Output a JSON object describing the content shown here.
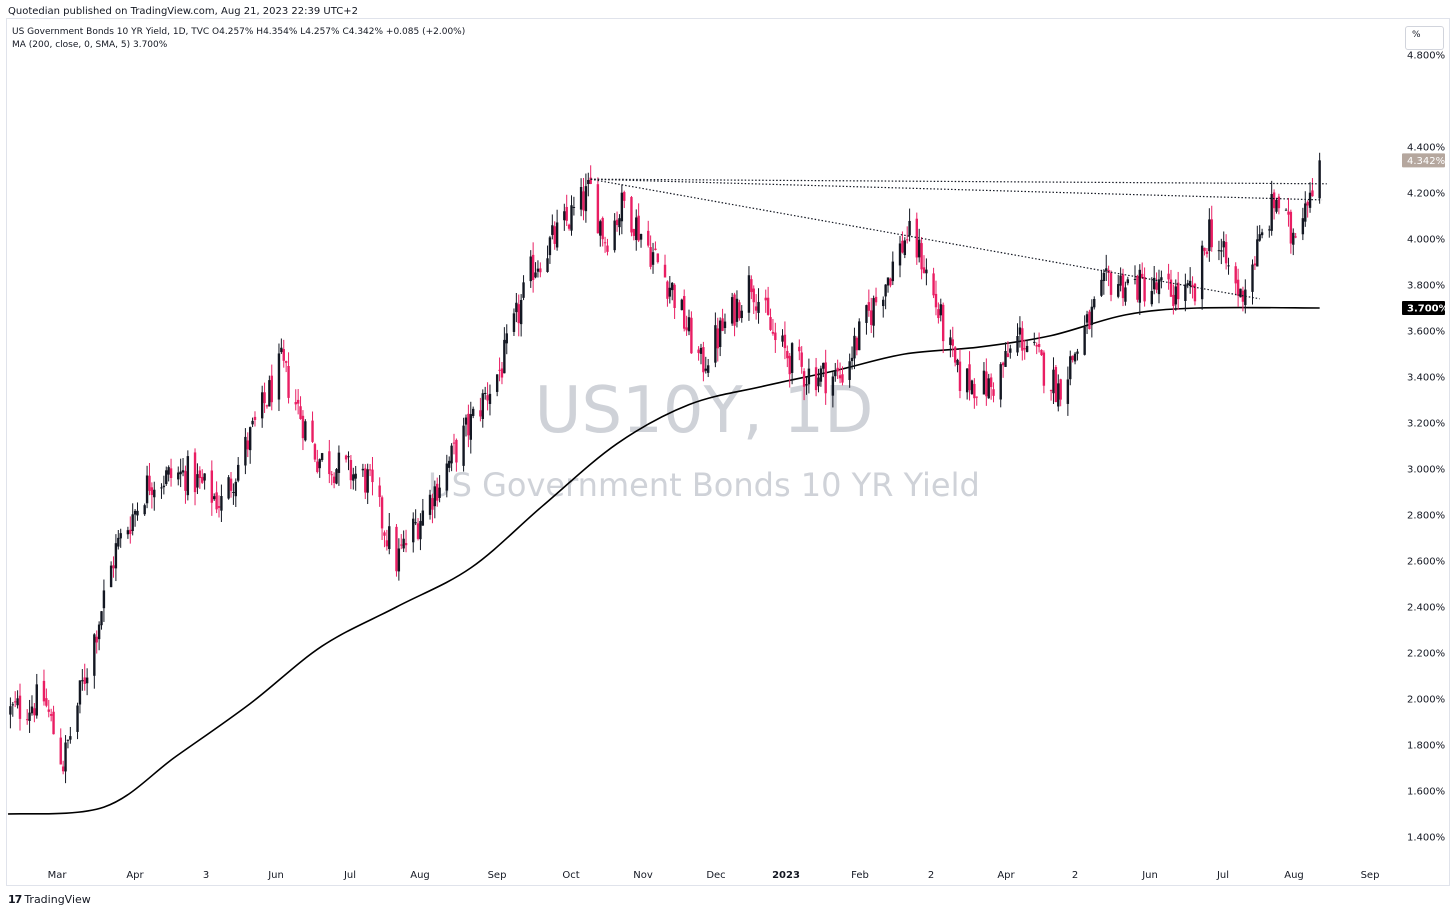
{
  "header": {
    "publisher": "Quotedian published on TradingView.com, Aug 21, 2023 22:39 UTC+2",
    "legend_line1": "US Government Bonds 10 YR Yield, 1D, TVC  O4.257%  H4.354%  L4.257%  C4.342%  +0.085 (+2.00%)",
    "legend_line2": "MA (200, close, 0, SMA, 5)  3.700%",
    "scale_button": "%"
  },
  "footer": {
    "logo_mark": "17",
    "logo_text": "TradingView"
  },
  "watermark": {
    "symbol": "US10Y, 1D",
    "name": "US Government Bonds 10 YR Yield"
  },
  "colors": {
    "up": "#131722",
    "down": "#e91e63",
    "ma": "#000000",
    "price_label_bg": "#b5a79e",
    "ma_label_bg": "#000000"
  },
  "chart_data": {
    "type": "candlestick",
    "title": "US Government Bonds 10 YR Yield",
    "symbol": "US10Y",
    "interval": "1D",
    "ylim": [
      1.3,
      4.8
    ],
    "y_unit": "%",
    "y_ticks": [
      "4.800%",
      "4.400%",
      "4.200%",
      "4.000%",
      "3.800%",
      "3.600%",
      "3.400%",
      "3.200%",
      "3.000%",
      "2.800%",
      "2.600%",
      "2.400%",
      "2.200%",
      "2.000%",
      "1.800%",
      "1.600%",
      "1.400%"
    ],
    "x_ticks": [
      {
        "label": "Mar",
        "bold": false
      },
      {
        "label": "Apr",
        "bold": false
      },
      {
        "label": "3",
        "bold": false
      },
      {
        "label": "Jun",
        "bold": false
      },
      {
        "label": "Jul",
        "bold": false
      },
      {
        "label": "Aug",
        "bold": false
      },
      {
        "label": "Sep",
        "bold": false
      },
      {
        "label": "Oct",
        "bold": false
      },
      {
        "label": "Nov",
        "bold": false
      },
      {
        "label": "Dec",
        "bold": false
      },
      {
        "label": "2023",
        "bold": true
      },
      {
        "label": "Feb",
        "bold": false
      },
      {
        "label": "2",
        "bold": false
      },
      {
        "label": "Apr",
        "bold": false
      },
      {
        "label": "2",
        "bold": false
      },
      {
        "label": "Jun",
        "bold": false
      },
      {
        "label": "Jul",
        "bold": false
      },
      {
        "label": "Aug",
        "bold": false
      },
      {
        "label": "Sep",
        "bold": false
      }
    ],
    "close_path_dates": [
      "2022-02-20",
      "2022-03-07",
      "2022-03-15",
      "2022-04-06",
      "2022-04-20",
      "2022-05-06",
      "2022-05-20",
      "2022-06-14",
      "2022-06-29",
      "2022-07-20",
      "2022-08-01",
      "2022-08-19",
      "2022-09-14",
      "2022-09-27",
      "2022-10-21",
      "2022-10-27",
      "2022-11-04",
      "2022-11-24",
      "2022-12-06",
      "2022-12-27",
      "2023-01-06",
      "2023-01-18",
      "2023-02-02",
      "2023-03-02",
      "2023-03-08",
      "2023-03-23",
      "2023-04-06",
      "2023-04-18",
      "2023-05-04",
      "2023-05-25",
      "2023-06-30",
      "2023-07-06",
      "2023-07-19",
      "2023-08-03",
      "2023-08-09",
      "2023-08-21"
    ],
    "close_path_values": [
      1.94,
      2.0,
      1.72,
      2.65,
      2.95,
      2.98,
      2.85,
      3.45,
      3.05,
      2.95,
      2.6,
      2.95,
      3.45,
      3.88,
      4.21,
      4.0,
      4.16,
      3.78,
      3.45,
      3.82,
      3.55,
      3.42,
      3.4,
      4.02,
      3.92,
      3.4,
      3.35,
      3.58,
      3.35,
      3.82,
      3.75,
      4.05,
      3.75,
      4.18,
      4.01,
      4.342
    ],
    "last_close": 4.342,
    "last_close_label": "4.342%",
    "ma": {
      "name": "MA (200, close, 0, SMA, 5)",
      "period": 200,
      "last_value": 3.7,
      "last_value_label": "3.700%",
      "dates": [
        "2022-02-20",
        "2022-04-01",
        "2022-05-01",
        "2022-06-01",
        "2022-07-01",
        "2022-08-01",
        "2022-09-01",
        "2022-10-01",
        "2022-11-01",
        "2022-12-01",
        "2023-01-01",
        "2023-02-01",
        "2023-03-01",
        "2023-04-01",
        "2023-05-01",
        "2023-06-01",
        "2023-07-01",
        "2023-08-21"
      ],
      "values": [
        1.5,
        1.53,
        1.75,
        1.98,
        2.23,
        2.4,
        2.57,
        2.84,
        3.11,
        3.28,
        3.36,
        3.43,
        3.5,
        3.53,
        3.58,
        3.67,
        3.7,
        3.7
      ]
    },
    "trendlines": [
      {
        "style": "dotted",
        "points": [
          [
            "2022-10-21",
            4.26
          ],
          [
            "2023-08-24",
            4.24
          ]
        ]
      },
      {
        "style": "dotted",
        "points": [
          [
            "2022-10-21",
            4.26
          ],
          [
            "2023-08-22",
            4.17
          ]
        ]
      },
      {
        "style": "dotted",
        "points": [
          [
            "2022-10-21",
            4.26
          ],
          [
            "2023-07-27",
            3.74
          ]
        ]
      }
    ],
    "grid": false,
    "legend_position": "top-left"
  }
}
